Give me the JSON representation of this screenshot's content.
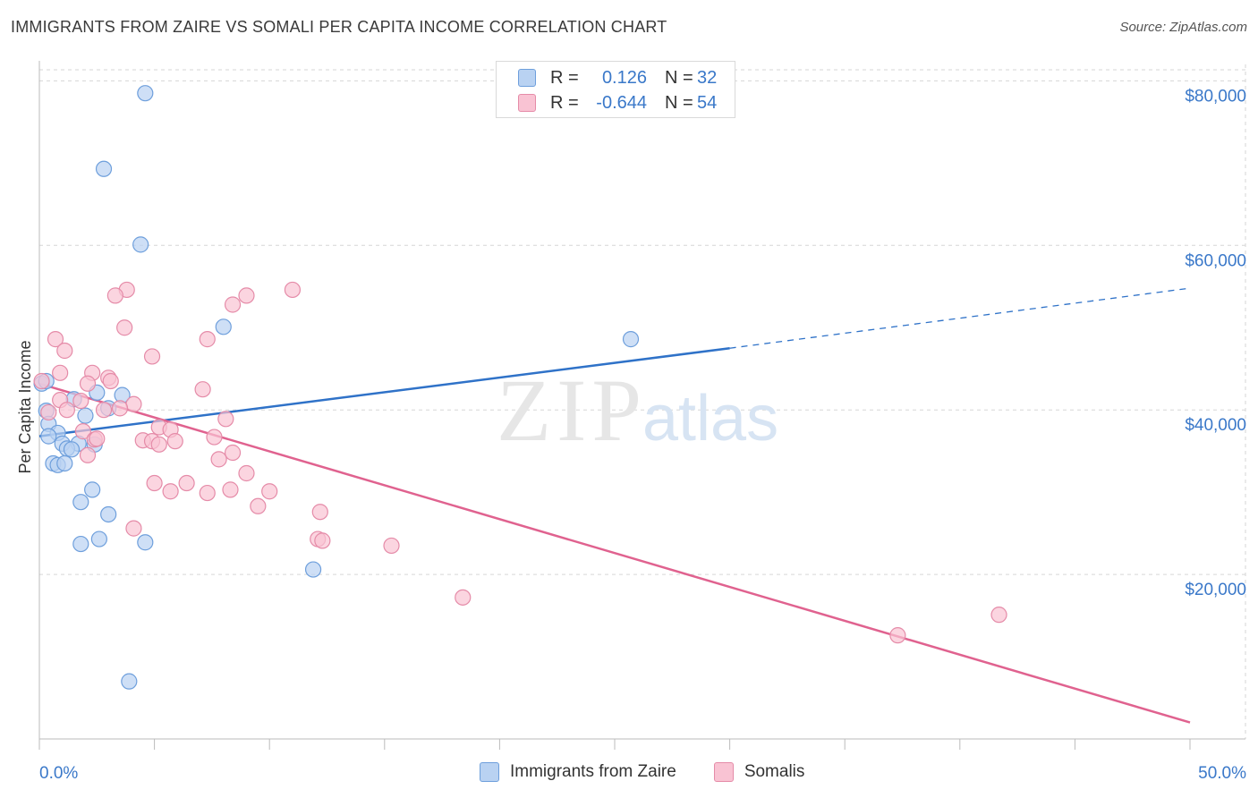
{
  "header": {
    "title": "IMMIGRANTS FROM ZAIRE VS SOMALI PER CAPITA INCOME CORRELATION CHART",
    "source": "Source: ZipAtlas.com"
  },
  "watermark": {
    "zip": "ZIP",
    "atlas": "atlas"
  },
  "legend": {
    "rows": [
      {
        "r_label": "R =",
        "r_value": "0.126",
        "n_label": "N =",
        "n_value": "32"
      },
      {
        "r_label": "R =",
        "r_value": "-0.644",
        "n_label": "N =",
        "n_value": "54"
      }
    ]
  },
  "bottom_legend": {
    "items": [
      {
        "label": "Immigrants from Zaire"
      },
      {
        "label": "Somalis"
      }
    ]
  },
  "colors": {
    "zaire_fill": "#b9d2f2",
    "zaire_stroke": "#6e9fdc",
    "zaire_line": "#2f72c8",
    "somali_fill": "#f9c3d3",
    "somali_stroke": "#e58ba8",
    "somali_line": "#e0628f",
    "axis_text": "#3a78c9",
    "grid": "#d6d6d6"
  },
  "chart_data": {
    "type": "scatter",
    "title": "IMMIGRANTS FROM ZAIRE VS SOMALI PER CAPITA INCOME CORRELATION CHART",
    "xlabel": "",
    "ylabel": "Per Capita Income",
    "xlim": [
      0,
      50
    ],
    "ylim": [
      0,
      82000
    ],
    "x_tick_labels": [
      "0.0%",
      "50.0%"
    ],
    "y_ticks": [
      20000,
      40000,
      60000,
      80000
    ],
    "y_tick_labels": [
      "$20,000",
      "$40,000",
      "$60,000",
      "$80,000"
    ],
    "grid": true,
    "legend_position": "top-center",
    "series": [
      {
        "name": "Immigrants from Zaire",
        "points": [
          [
            4.6,
            78500
          ],
          [
            2.8,
            69300
          ],
          [
            4.4,
            60100
          ],
          [
            8.0,
            50100
          ],
          [
            25.7,
            48600
          ],
          [
            0.1,
            43200
          ],
          [
            2.5,
            42100
          ],
          [
            3.6,
            41800
          ],
          [
            1.5,
            41300
          ],
          [
            3.0,
            40200
          ],
          [
            0.3,
            39900
          ],
          [
            2.0,
            39300
          ],
          [
            0.4,
            38300
          ],
          [
            0.8,
            37200
          ],
          [
            0.4,
            36800
          ],
          [
            1.0,
            35900
          ],
          [
            1.7,
            35900
          ],
          [
            2.4,
            35800
          ],
          [
            1.2,
            35300
          ],
          [
            1.4,
            35200
          ],
          [
            0.6,
            33500
          ],
          [
            0.8,
            33300
          ],
          [
            1.1,
            33500
          ],
          [
            2.3,
            30300
          ],
          [
            1.8,
            28800
          ],
          [
            3.0,
            27300
          ],
          [
            2.6,
            24300
          ],
          [
            1.8,
            23700
          ],
          [
            4.6,
            23900
          ],
          [
            11.9,
            20600
          ],
          [
            3.9,
            7000
          ],
          [
            0.3,
            43500
          ]
        ],
        "trend": {
          "x0": 0,
          "y0": 36800,
          "x1": 30,
          "y1": 47500,
          "dashed_to_x": 50,
          "dashed_to_y": 54800
        }
      },
      {
        "name": "Somalis",
        "points": [
          [
            11.0,
            54600
          ],
          [
            3.8,
            54600
          ],
          [
            3.3,
            53900
          ],
          [
            9.0,
            53900
          ],
          [
            8.4,
            52800
          ],
          [
            3.7,
            50000
          ],
          [
            0.7,
            48600
          ],
          [
            7.3,
            48600
          ],
          [
            1.1,
            47200
          ],
          [
            4.9,
            46500
          ],
          [
            2.3,
            44500
          ],
          [
            3.0,
            43900
          ],
          [
            3.1,
            43500
          ],
          [
            0.1,
            43500
          ],
          [
            2.1,
            43200
          ],
          [
            7.1,
            42500
          ],
          [
            0.9,
            41200
          ],
          [
            4.1,
            40700
          ],
          [
            3.5,
            40200
          ],
          [
            1.2,
            40000
          ],
          [
            2.8,
            40000
          ],
          [
            0.4,
            39700
          ],
          [
            8.1,
            38900
          ],
          [
            5.2,
            37900
          ],
          [
            5.7,
            37600
          ],
          [
            1.9,
            37400
          ],
          [
            7.6,
            36700
          ],
          [
            2.4,
            36400
          ],
          [
            4.5,
            36300
          ],
          [
            4.9,
            36200
          ],
          [
            5.9,
            36200
          ],
          [
            5.2,
            35800
          ],
          [
            8.4,
            34800
          ],
          [
            2.1,
            34500
          ],
          [
            7.8,
            34000
          ],
          [
            9.0,
            32300
          ],
          [
            5.0,
            31100
          ],
          [
            6.4,
            31100
          ],
          [
            5.7,
            30100
          ],
          [
            7.3,
            29900
          ],
          [
            10.0,
            30100
          ],
          [
            8.3,
            30300
          ],
          [
            9.5,
            28300
          ],
          [
            12.2,
            27600
          ],
          [
            4.1,
            25600
          ],
          [
            12.1,
            24300
          ],
          [
            12.3,
            24100
          ],
          [
            15.3,
            23500
          ],
          [
            18.4,
            17200
          ],
          [
            37.3,
            12600
          ],
          [
            41.7,
            15100
          ],
          [
            2.5,
            36500
          ],
          [
            1.8,
            41100
          ],
          [
            0.9,
            44500
          ]
        ],
        "trend": {
          "x0": 0,
          "y0": 43200,
          "x1": 50,
          "y1": 2000
        }
      }
    ]
  }
}
